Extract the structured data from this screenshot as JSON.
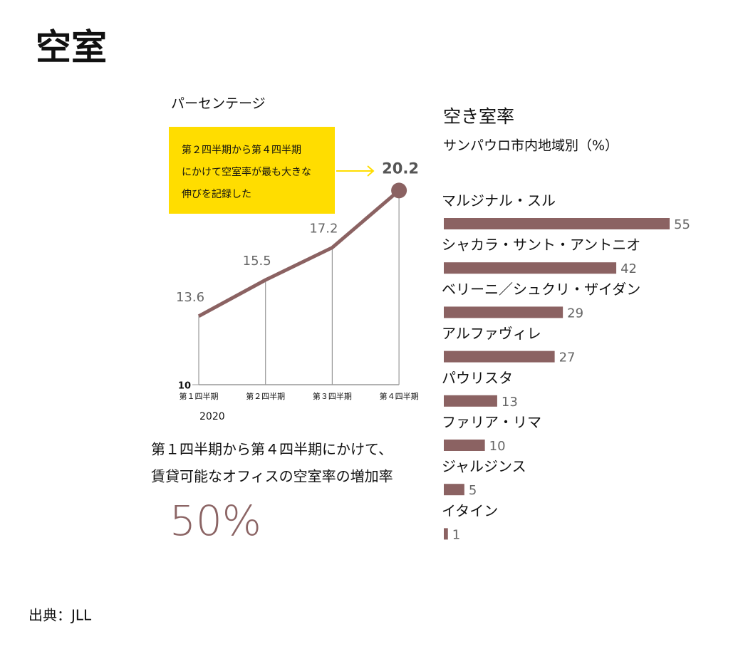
{
  "title": "空室",
  "source": "出典：JLL",
  "stat": {
    "lines": [
      "第１四半期から第４四半期にかけて、",
      "賃貸可能なオフィスの空室率の増加率"
    ],
    "value": "50%"
  },
  "chart_data": [
    {
      "type": "line",
      "y_label": "パーセンテージ",
      "x_label": "2020",
      "annotation": [
        "第２四半期から第４四半期",
        "にかけて空室率が最も大きな",
        "伸びを記録した"
      ],
      "categories": [
        "第１四半期",
        "第２四半期",
        "第３四半期",
        "第４四半期"
      ],
      "values": [
        13.6,
        15.5,
        17.2,
        20.2
      ],
      "color": "#8b6262",
      "ylim": [
        10,
        21
      ],
      "yticks": [
        10
      ]
    },
    {
      "type": "hbar",
      "title": "空き室率",
      "subtitle": "サンパウロ市内地域別（%）",
      "categories": [
        "マルジナル・スル",
        "シャカラ・サント・アントニオ",
        "ベリーニ／シュクリ・ザイダン",
        "アルファヴィレ",
        "パウリスタ",
        "ファリア・リマ",
        "ジャルジンス",
        "イタイン"
      ],
      "values": [
        55,
        42,
        29,
        27,
        13,
        10,
        5,
        1
      ],
      "color": "#8b6262",
      "xlim": [
        0,
        55
      ]
    }
  ]
}
